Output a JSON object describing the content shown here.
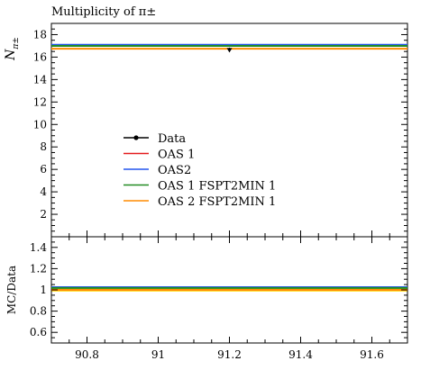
{
  "chart_data": [
    {
      "type": "line",
      "title": "Multiplicity of π±",
      "ylabel": "N",
      "ylabel_sub": "π±",
      "xlim": [
        90.7,
        91.7
      ],
      "ylim": [
        0,
        19
      ],
      "yticks": [
        2,
        4,
        6,
        8,
        10,
        12,
        14,
        16,
        18
      ],
      "legend_position": "center-left",
      "data_point": {
        "name": "Data",
        "x": 91.2,
        "y": 16.65,
        "yerr": 0.2
      },
      "series": [
        {
          "name": "OAS 1",
          "color": "#e41a1c",
          "y": 17.05
        },
        {
          "name": "OAS2",
          "color": "#2255ee",
          "y": 17.1
        },
        {
          "name": "OAS 1 FSPT2MIN 1",
          "color": "#228b22",
          "y": 17.0
        },
        {
          "name": "OAS 2 FSPT2MIN 1",
          "color": "#ff8c00",
          "y": 16.75
        }
      ]
    },
    {
      "type": "line",
      "ylabel": "MC/Data",
      "xlim": [
        90.7,
        91.7
      ],
      "ylim": [
        0.5,
        1.5
      ],
      "yticks": [
        0.6,
        0.8,
        1,
        1.2,
        1.4
      ],
      "xticks": [
        90.8,
        91,
        91.2,
        91.4,
        91.6
      ],
      "band": {
        "low": 0.985,
        "high": 1.015,
        "color": "#ffd700"
      },
      "series": [
        {
          "name": "OAS 1",
          "color": "#e41a1c",
          "y": 1.022
        },
        {
          "name": "OAS2",
          "color": "#2255ee",
          "y": 1.025
        },
        {
          "name": "OAS 1 FSPT2MIN 1",
          "color": "#228b22",
          "y": 1.018
        },
        {
          "name": "OAS 2 FSPT2MIN 1",
          "color": "#ff8c00",
          "y": 1.0
        }
      ]
    }
  ]
}
